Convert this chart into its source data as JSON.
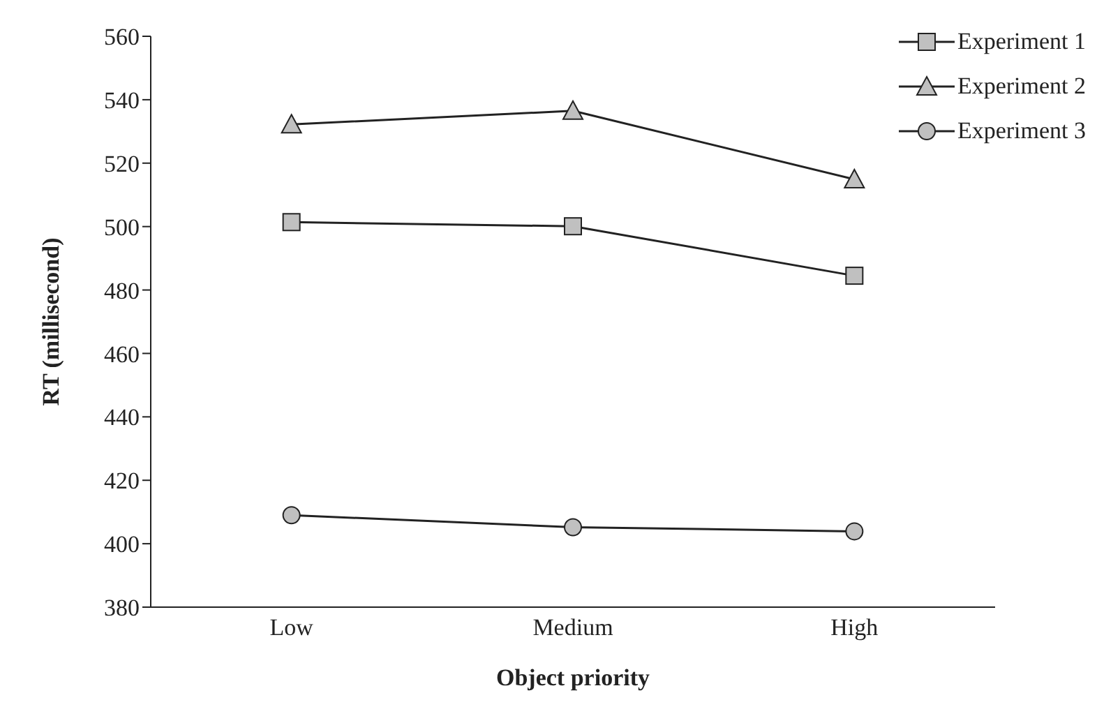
{
  "chart_data": {
    "type": "line",
    "xlabel": "Object priority",
    "ylabel": "RT (millisecond)",
    "categories": [
      "Low",
      "Medium",
      "High"
    ],
    "series": [
      {
        "name": "Experiment 1",
        "color": "#222222",
        "marker": "square",
        "values": [
          501.4,
          500.1,
          484.5
        ]
      },
      {
        "name": "Experiment 2",
        "color": "#222222",
        "marker": "triangle",
        "values": [
          532.2,
          536.5,
          514.9
        ]
      },
      {
        "name": "Experiment 3",
        "color": "#222222",
        "marker": "circle",
        "values": [
          409,
          405.2,
          403.9
        ]
      }
    ],
    "ylim": [
      380,
      560
    ],
    "yticks": [
      380,
      400,
      420,
      440,
      460,
      480,
      500,
      520,
      540,
      560
    ],
    "grid": false,
    "legend": "top right"
  }
}
